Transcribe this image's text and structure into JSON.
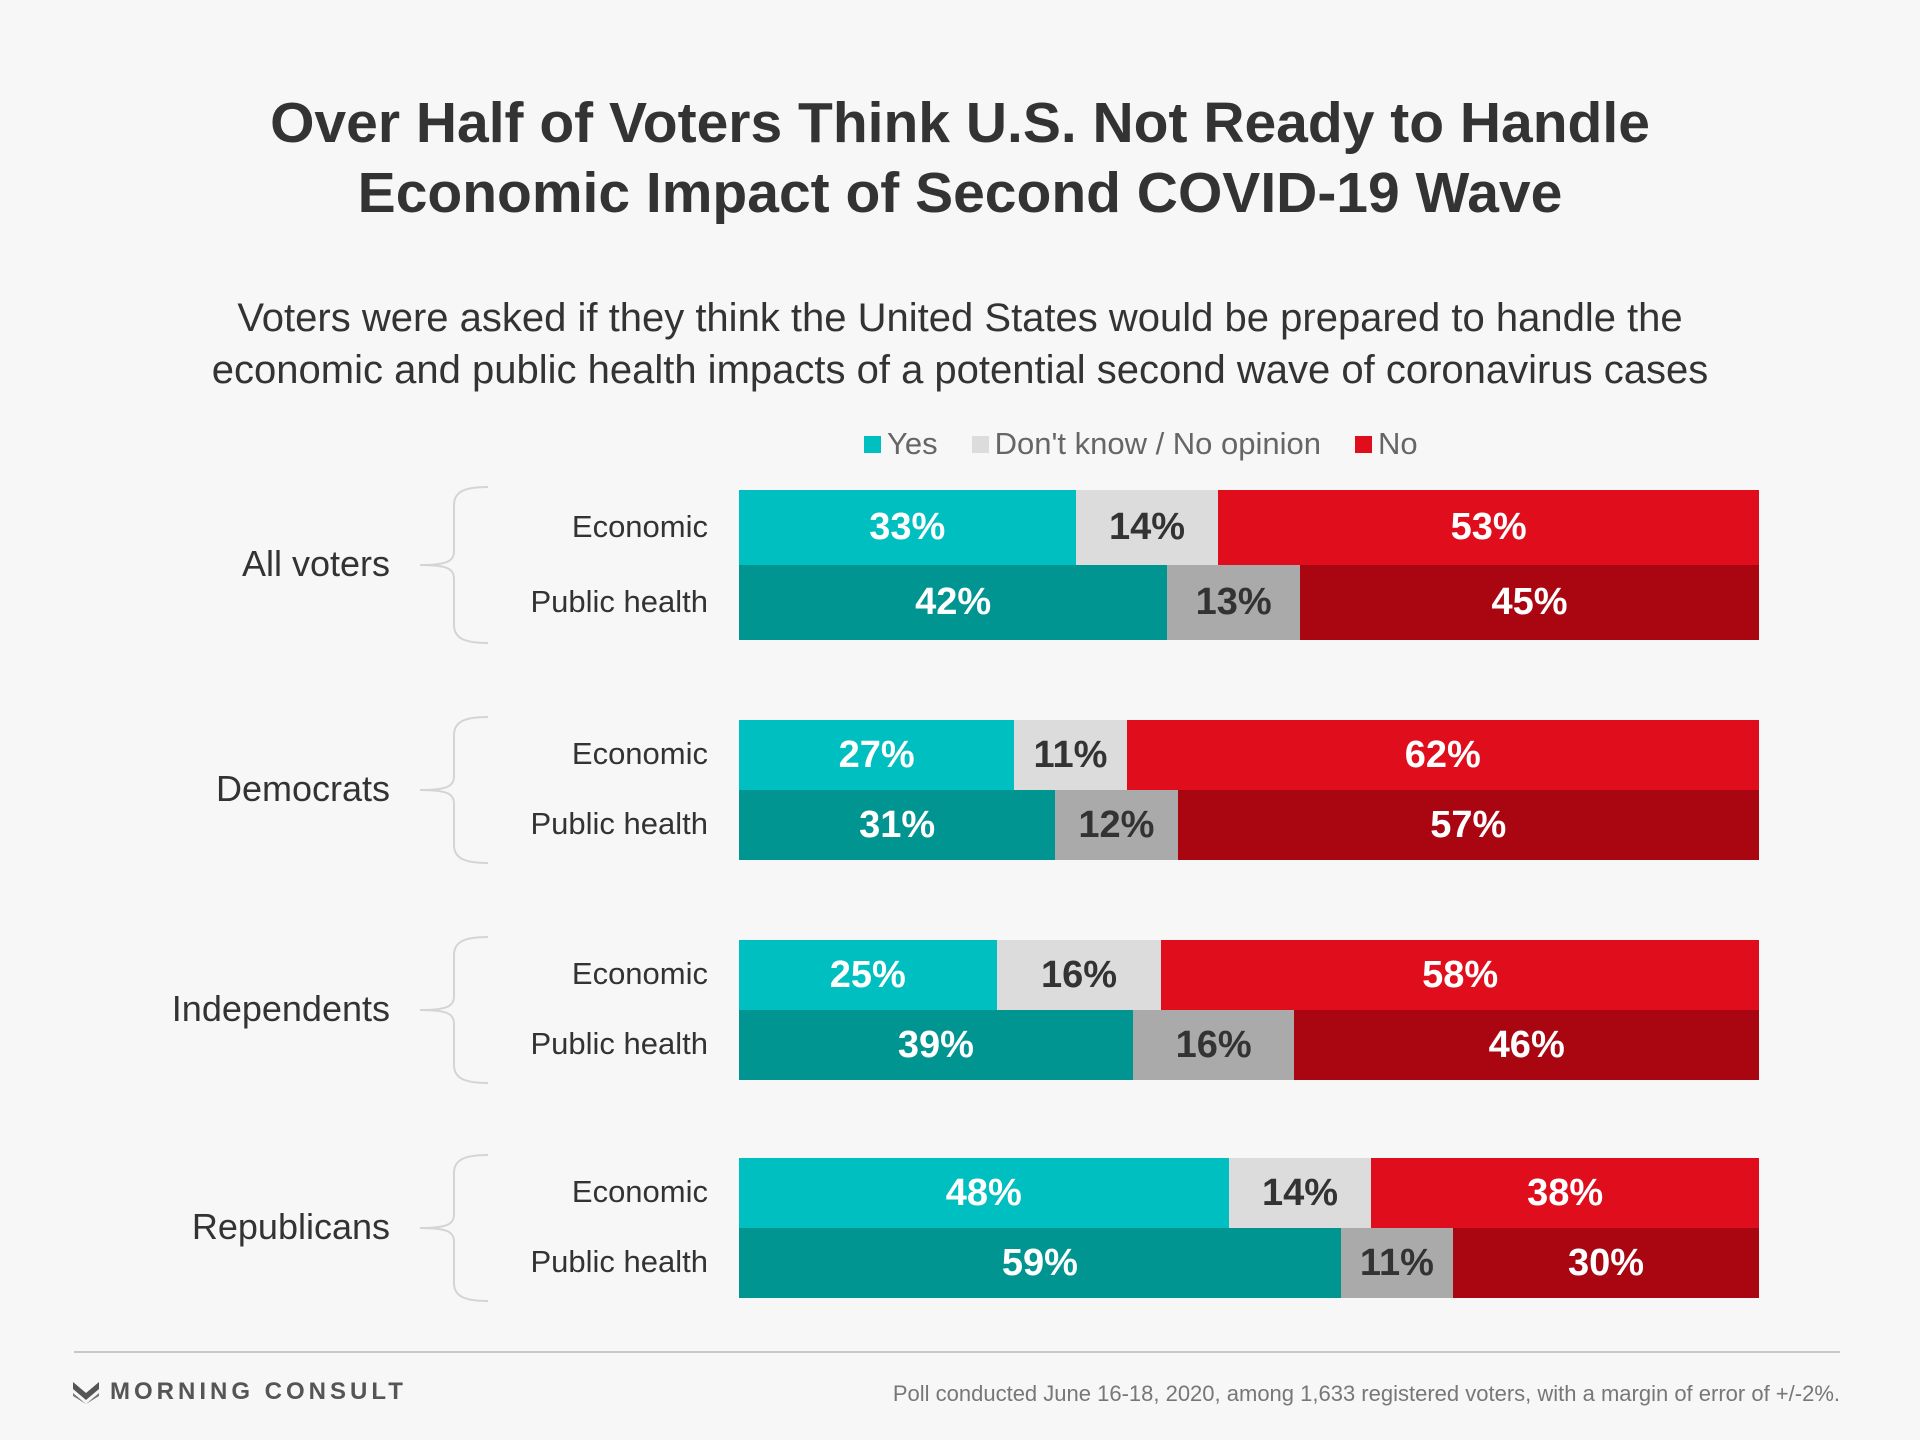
{
  "title_lines": [
    "Over Half of Voters Think U.S. Not Ready to Handle",
    "Economic Impact of Second COVID-19 Wave"
  ],
  "subtitle_lines": [
    "Voters were asked if they think the United States would be prepared to handle the",
    "economic and public health impacts of a potential second wave of coronavirus cases"
  ],
  "legend": [
    {
      "label": "Yes",
      "color": "#00bfc0"
    },
    {
      "label": "Don't know / No opinion",
      "color": "#dcdcdc"
    },
    {
      "label": "No",
      "color": "#e00d1d"
    }
  ],
  "chart_data": {
    "type": "bar",
    "orientation": "horizontal",
    "stacked": true,
    "percent": true,
    "title": "Over Half of Voters Think U.S. Not Ready to Handle Economic Impact of Second COVID-19 Wave",
    "subtitle": "Voters were asked if they think the United States would be prepared to handle the economic and public health impacts of a potential second wave of coronavirus cases",
    "legend_position": "top",
    "grid": false,
    "segments": [
      "Yes",
      "Don't know / No opinion",
      "No"
    ],
    "groups": [
      {
        "name": "All voters",
        "rows": [
          {
            "label": "Economic",
            "values": [
              33,
              14,
              53
            ],
            "colors": [
              "#00bfc0",
              "#dcdcdc",
              "#e00d1d"
            ]
          },
          {
            "label": "Public health",
            "values": [
              42,
              13,
              45
            ],
            "colors": [
              "#009591",
              "#aaaaaa",
              "#a90612"
            ]
          }
        ]
      },
      {
        "name": "Democrats",
        "rows": [
          {
            "label": "Economic",
            "values": [
              27,
              11,
              62
            ],
            "colors": [
              "#00bfc0",
              "#dcdcdc",
              "#e00d1d"
            ]
          },
          {
            "label": "Public health",
            "values": [
              31,
              12,
              57
            ],
            "colors": [
              "#009591",
              "#aaaaaa",
              "#a90612"
            ]
          }
        ]
      },
      {
        "name": "Independents",
        "rows": [
          {
            "label": "Economic",
            "values": [
              25,
              16,
              58
            ],
            "colors": [
              "#00bfc0",
              "#dcdcdc",
              "#e00d1d"
            ]
          },
          {
            "label": "Public health",
            "values": [
              39,
              16,
              46
            ],
            "colors": [
              "#009591",
              "#aaaaaa",
              "#a90612"
            ]
          }
        ]
      },
      {
        "name": "Republicans",
        "rows": [
          {
            "label": "Economic",
            "values": [
              48,
              14,
              38
            ],
            "colors": [
              "#00bfc0",
              "#dcdcdc",
              "#e00d1d"
            ]
          },
          {
            "label": "Public health",
            "values": [
              59,
              11,
              30
            ],
            "colors": [
              "#009591",
              "#aaaaaa",
              "#a90612"
            ]
          }
        ]
      }
    ]
  },
  "footer": {
    "logo_text": "MORNING CONSULT",
    "logo_icon": "morning-consult-logo-icon",
    "note": "Poll conducted June 16-18, 2020, among 1,633 registered voters, with a margin of error of +/-2%."
  }
}
